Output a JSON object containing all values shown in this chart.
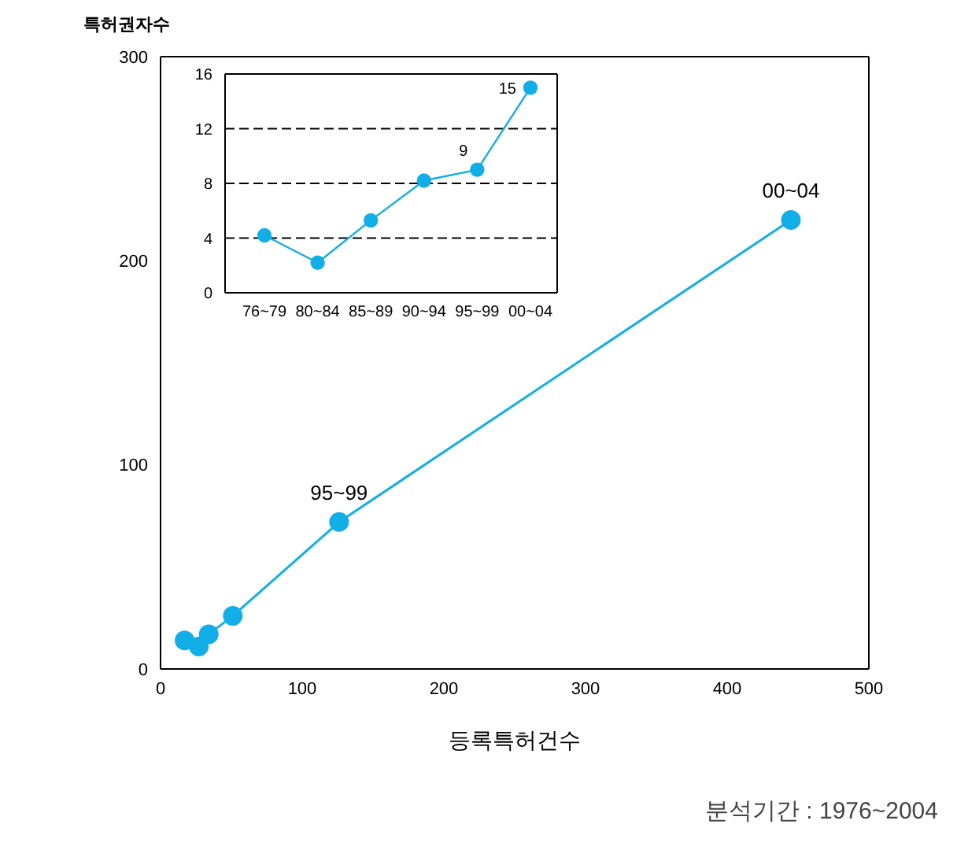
{
  "chart_data": [
    {
      "type": "line",
      "xlabel": "등록특허건수",
      "ylabel": "특허권자수",
      "x": [
        17,
        27,
        34,
        51,
        126,
        445
      ],
      "series": [
        {
          "color": "#12aee8",
          "values": [
            14,
            11,
            17,
            26,
            72,
            220
          ]
        }
      ],
      "xlim": [
        0,
        500
      ],
      "xticks": [
        0,
        100,
        200,
        300,
        400,
        500
      ],
      "ylim": [
        0,
        300
      ],
      "yticks": [
        0,
        100,
        200,
        300
      ],
      "grid": false,
      "marker": "circle",
      "line_style": "solid",
      "annotations": [
        {
          "text": "95~99",
          "x": 126,
          "y": 72
        },
        {
          "text": "00~04",
          "x": 445,
          "y": 220
        },
        "분석기간 : 1976~2004"
      ]
    },
    {
      "type": "line",
      "categories": [
        "76~79",
        "80~84",
        "85~89",
        "90~94",
        "95~99",
        "00~04"
      ],
      "series": [
        {
          "color": "#12aee8",
          "values": [
            4.2,
            2.2,
            5.3,
            8.2,
            9,
            15
          ],
          "value_labels": [
            null,
            null,
            null,
            null,
            "9",
            "15"
          ]
        }
      ],
      "ylim": [
        0,
        16
      ],
      "yticks": [
        0,
        4,
        8,
        12,
        16
      ],
      "grid": "y",
      "marker": "circle",
      "line_style": "solid"
    }
  ]
}
